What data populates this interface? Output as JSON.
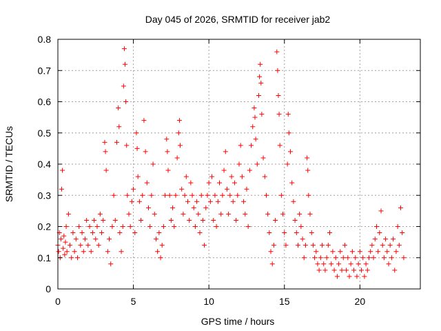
{
  "chart_data": {
    "type": "scatter",
    "title": "Day 045 of 2026, SRMTID for receiver jab2",
    "xlabel": "GPS time / hours",
    "ylabel": "SRMTID / TECUs",
    "xlim": [
      0,
      24
    ],
    "ylim": [
      0,
      0.8
    ],
    "xticks": [
      0,
      5,
      10,
      15,
      20
    ],
    "xtick_labels": [
      "0",
      "5",
      "10",
      "15",
      "20"
    ],
    "yticks": [
      0,
      0.1,
      0.2,
      0.3,
      0.4,
      0.5,
      0.6,
      0.7,
      0.8
    ],
    "ytick_labels": [
      "0",
      "0.1",
      "0.2",
      "0.3",
      "0.4",
      "0.5",
      "0.6",
      "0.7",
      "0.8"
    ],
    "grid": true,
    "marker": "+",
    "marker_color": "#ff0000",
    "series": [
      {
        "name": "jab2",
        "points": [
          [
            0.0,
            0.14
          ],
          [
            0.05,
            0.12
          ],
          [
            0.1,
            0.18
          ],
          [
            0.15,
            0.1
          ],
          [
            0.2,
            0.16
          ],
          [
            0.25,
            0.32
          ],
          [
            0.3,
            0.38
          ],
          [
            0.35,
            0.13
          ],
          [
            0.4,
            0.17
          ],
          [
            0.45,
            0.11
          ],
          [
            0.5,
            0.15
          ],
          [
            0.55,
            0.2
          ],
          [
            0.6,
            0.12
          ],
          [
            0.7,
            0.24
          ],
          [
            0.8,
            0.14
          ],
          [
            0.9,
            0.1
          ],
          [
            1.0,
            0.18
          ],
          [
            1.1,
            0.12
          ],
          [
            1.2,
            0.16
          ],
          [
            1.3,
            0.1
          ],
          [
            1.4,
            0.2
          ],
          [
            1.5,
            0.14
          ],
          [
            1.6,
            0.18
          ],
          [
            1.7,
            0.12
          ],
          [
            1.8,
            0.16
          ],
          [
            1.9,
            0.22
          ],
          [
            2.0,
            0.14
          ],
          [
            2.1,
            0.2
          ],
          [
            2.2,
            0.12
          ],
          [
            2.3,
            0.18
          ],
          [
            2.4,
            0.22
          ],
          [
            2.5,
            0.16
          ],
          [
            2.6,
            0.2
          ],
          [
            2.7,
            0.14
          ],
          [
            2.8,
            0.24
          ],
          [
            2.9,
            0.18
          ],
          [
            3.0,
            0.22
          ],
          [
            3.1,
            0.47
          ],
          [
            3.15,
            0.44
          ],
          [
            3.2,
            0.38
          ],
          [
            3.3,
            0.12
          ],
          [
            3.4,
            0.16
          ],
          [
            3.5,
            0.08
          ],
          [
            3.6,
            0.2
          ],
          [
            3.7,
            0.3
          ],
          [
            3.8,
            0.22
          ],
          [
            3.9,
            0.47
          ],
          [
            4.0,
            0.58
          ],
          [
            4.05,
            0.52
          ],
          [
            4.1,
            0.18
          ],
          [
            4.2,
            0.12
          ],
          [
            4.3,
            0.2
          ],
          [
            4.35,
            0.65
          ],
          [
            4.4,
            0.77
          ],
          [
            4.45,
            0.72
          ],
          [
            4.5,
            0.6
          ],
          [
            4.55,
            0.46
          ],
          [
            4.6,
            0.3
          ],
          [
            4.7,
            0.24
          ],
          [
            4.8,
            0.2
          ],
          [
            4.9,
            0.28
          ],
          [
            5.0,
            0.32
          ],
          [
            5.1,
            0.18
          ],
          [
            5.2,
            0.5
          ],
          [
            5.25,
            0.45
          ],
          [
            5.3,
            0.36
          ],
          [
            5.4,
            0.28
          ],
          [
            5.5,
            0.22
          ],
          [
            5.6,
            0.3
          ],
          [
            5.7,
            0.54
          ],
          [
            5.8,
            0.44
          ],
          [
            5.9,
            0.34
          ],
          [
            6.0,
            0.26
          ],
          [
            6.1,
            0.2
          ],
          [
            6.2,
            0.3
          ],
          [
            6.3,
            0.4
          ],
          [
            6.4,
            0.24
          ],
          [
            6.5,
            0.16
          ],
          [
            6.6,
            0.12
          ],
          [
            6.7,
            0.18
          ],
          [
            6.8,
            0.1
          ],
          [
            6.9,
            0.14
          ],
          [
            7.0,
            0.2
          ],
          [
            7.1,
            0.3
          ],
          [
            7.2,
            0.48
          ],
          [
            7.25,
            0.44
          ],
          [
            7.3,
            0.38
          ],
          [
            7.4,
            0.3
          ],
          [
            7.5,
            0.22
          ],
          [
            7.6,
            0.26
          ],
          [
            7.7,
            0.2
          ],
          [
            7.8,
            0.3
          ],
          [
            7.9,
            0.42
          ],
          [
            8.0,
            0.5
          ],
          [
            8.05,
            0.54
          ],
          [
            8.1,
            0.46
          ],
          [
            8.2,
            0.32
          ],
          [
            8.3,
            0.24
          ],
          [
            8.4,
            0.3
          ],
          [
            8.5,
            0.36
          ],
          [
            8.6,
            0.28
          ],
          [
            8.7,
            0.22
          ],
          [
            8.8,
            0.34
          ],
          [
            8.9,
            0.3
          ],
          [
            9.0,
            0.26
          ],
          [
            9.1,
            0.2
          ],
          [
            9.2,
            0.28
          ],
          [
            9.3,
            0.24
          ],
          [
            9.4,
            0.18
          ],
          [
            9.5,
            0.3
          ],
          [
            9.6,
            0.22
          ],
          [
            9.7,
            0.14
          ],
          [
            9.8,
            0.26
          ],
          [
            9.9,
            0.3
          ],
          [
            10.0,
            0.34
          ],
          [
            10.1,
            0.28
          ],
          [
            10.2,
            0.36
          ],
          [
            10.3,
            0.22
          ],
          [
            10.4,
            0.3
          ],
          [
            10.5,
            0.2
          ],
          [
            10.6,
            0.28
          ],
          [
            10.7,
            0.34
          ],
          [
            10.8,
            0.24
          ],
          [
            10.9,
            0.3
          ],
          [
            11.0,
            0.38
          ],
          [
            11.1,
            0.44
          ],
          [
            11.2,
            0.32
          ],
          [
            11.3,
            0.24
          ],
          [
            11.4,
            0.3
          ],
          [
            11.5,
            0.36
          ],
          [
            11.6,
            0.28
          ],
          [
            11.7,
            0.34
          ],
          [
            11.8,
            0.22
          ],
          [
            11.9,
            0.3
          ],
          [
            12.0,
            0.4
          ],
          [
            12.1,
            0.46
          ],
          [
            12.2,
            0.36
          ],
          [
            12.3,
            0.28
          ],
          [
            12.4,
            0.24
          ],
          [
            12.5,
            0.32
          ],
          [
            12.6,
            0.2
          ],
          [
            12.7,
            0.38
          ],
          [
            12.8,
            0.46
          ],
          [
            12.9,
            0.52
          ],
          [
            13.0,
            0.58
          ],
          [
            13.05,
            0.55
          ],
          [
            13.1,
            0.48
          ],
          [
            13.2,
            0.4
          ],
          [
            13.3,
            0.62
          ],
          [
            13.35,
            0.68
          ],
          [
            13.4,
            0.72
          ],
          [
            13.45,
            0.66
          ],
          [
            13.5,
            0.56
          ],
          [
            13.6,
            0.42
          ],
          [
            13.7,
            0.36
          ],
          [
            13.8,
            0.3
          ],
          [
            13.9,
            0.24
          ],
          [
            14.0,
            0.18
          ],
          [
            14.1,
            0.12
          ],
          [
            14.2,
            0.08
          ],
          [
            14.3,
            0.14
          ],
          [
            14.4,
            0.22
          ],
          [
            14.5,
            0.76
          ],
          [
            14.55,
            0.7
          ],
          [
            14.6,
            0.62
          ],
          [
            14.65,
            0.56
          ],
          [
            14.7,
            0.46
          ],
          [
            14.8,
            0.3
          ],
          [
            14.9,
            0.24
          ],
          [
            15.0,
            0.18
          ],
          [
            15.1,
            0.14
          ],
          [
            15.2,
            0.4
          ],
          [
            15.25,
            0.56
          ],
          [
            15.3,
            0.5
          ],
          [
            15.4,
            0.44
          ],
          [
            15.5,
            0.34
          ],
          [
            15.6,
            0.28
          ],
          [
            15.7,
            0.22
          ],
          [
            15.8,
            0.18
          ],
          [
            15.9,
            0.14
          ],
          [
            16.0,
            0.24
          ],
          [
            16.1,
            0.2
          ],
          [
            16.2,
            0.16
          ],
          [
            16.3,
            0.1
          ],
          [
            16.4,
            0.14
          ],
          [
            16.5,
            0.42
          ],
          [
            16.55,
            0.38
          ],
          [
            16.6,
            0.3
          ],
          [
            16.7,
            0.24
          ],
          [
            16.8,
            0.18
          ],
          [
            16.9,
            0.14
          ],
          [
            17.0,
            0.1
          ],
          [
            17.1,
            0.12
          ],
          [
            17.2,
            0.08
          ],
          [
            17.3,
            0.06
          ],
          [
            17.4,
            0.1
          ],
          [
            17.5,
            0.14
          ],
          [
            17.6,
            0.08
          ],
          [
            17.7,
            0.06
          ],
          [
            17.8,
            0.1
          ],
          [
            17.9,
            0.14
          ],
          [
            18.0,
            0.18
          ],
          [
            18.1,
            0.08
          ],
          [
            18.2,
            0.12
          ],
          [
            18.3,
            0.06
          ],
          [
            18.4,
            0.1
          ],
          [
            18.5,
            0.04
          ],
          [
            18.6,
            0.08
          ],
          [
            18.7,
            0.12
          ],
          [
            18.8,
            0.06
          ],
          [
            18.9,
            0.1
          ],
          [
            19.0,
            0.14
          ],
          [
            19.1,
            0.06
          ],
          [
            19.2,
            0.1
          ],
          [
            19.3,
            0.04
          ],
          [
            19.4,
            0.08
          ],
          [
            19.5,
            0.12
          ],
          [
            19.6,
            0.06
          ],
          [
            19.7,
            0.1
          ],
          [
            19.8,
            0.04
          ],
          [
            19.9,
            0.08
          ],
          [
            20.0,
            0.12
          ],
          [
            20.1,
            0.06
          ],
          [
            20.2,
            0.1
          ],
          [
            20.3,
            0.04
          ],
          [
            20.4,
            0.08
          ],
          [
            20.5,
            0.06
          ],
          [
            20.6,
            0.1
          ],
          [
            20.7,
            0.12
          ],
          [
            20.8,
            0.14
          ],
          [
            20.9,
            0.1
          ],
          [
            21.0,
            0.16
          ],
          [
            21.1,
            0.2
          ],
          [
            21.2,
            0.12
          ],
          [
            21.3,
            0.18
          ],
          [
            21.4,
            0.25
          ],
          [
            21.5,
            0.14
          ],
          [
            21.6,
            0.1
          ],
          [
            21.7,
            0.16
          ],
          [
            21.8,
            0.12
          ],
          [
            21.9,
            0.08
          ],
          [
            22.0,
            0.14
          ],
          [
            22.1,
            0.1
          ],
          [
            22.2,
            0.16
          ],
          [
            22.3,
            0.06
          ],
          [
            22.4,
            0.12
          ],
          [
            22.5,
            0.2
          ],
          [
            22.6,
            0.14
          ],
          [
            22.7,
            0.26
          ],
          [
            22.8,
            0.18
          ],
          [
            22.9,
            0.1
          ]
        ]
      }
    ]
  }
}
